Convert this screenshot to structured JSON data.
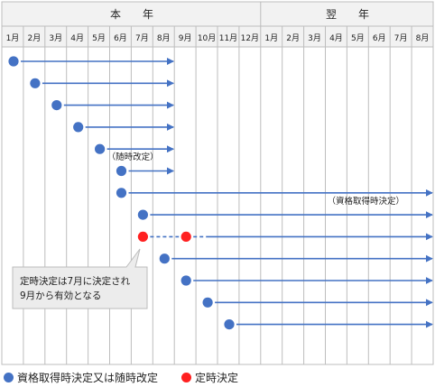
{
  "header": {
    "this_year": "本　　年",
    "next_year": "翌　　年"
  },
  "months": {
    "this_year": [
      "1月",
      "2月",
      "3月",
      "4月",
      "5月",
      "6月",
      "7月",
      "8月",
      "9月",
      "10月",
      "11月",
      "12月"
    ],
    "next_year": [
      "1月",
      "2月",
      "3月",
      "4月",
      "5月",
      "6月",
      "7月",
      "8月"
    ]
  },
  "rows": [
    {
      "start": 1,
      "end": 8,
      "type": "regular"
    },
    {
      "start": 2,
      "end": 8,
      "type": "regular"
    },
    {
      "start": 3,
      "end": 8,
      "type": "regular"
    },
    {
      "start": 4,
      "end": 8,
      "type": "regular"
    },
    {
      "start": 5,
      "end": 8,
      "type": "regular",
      "label": "（随時改定）"
    },
    {
      "start": 6,
      "end": 8,
      "type": "regular"
    },
    {
      "start": 6,
      "end": 20,
      "type": "regular",
      "label": "（資格取得時決定）"
    },
    {
      "start": 7,
      "end": 20,
      "type": "regular"
    },
    {
      "start": 7,
      "end": 20,
      "type": "teiji",
      "effective": 9
    },
    {
      "start": 8,
      "end": 20,
      "type": "regular"
    },
    {
      "start": 9,
      "end": 20,
      "type": "regular"
    },
    {
      "start": 10,
      "end": 20,
      "type": "regular"
    },
    {
      "start": 11,
      "end": 20,
      "type": "regular"
    }
  ],
  "callout": {
    "line1": "定時決定は7月に決定され",
    "line2": "9月から有効となる"
  },
  "legend": {
    "blue_label": "資格取得時決定又は随時改定",
    "red_label": "定時決定"
  },
  "colors": {
    "blue": "#4472c4",
    "red": "#ff2020",
    "grid": "#bdbdbd",
    "header_bg": "#f2f2f2",
    "callout_bg": "#ececec"
  }
}
